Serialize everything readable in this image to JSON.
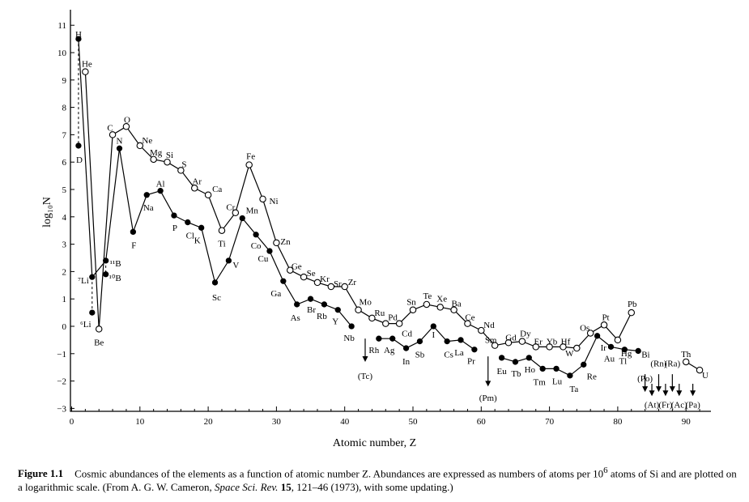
{
  "chart_data": {
    "type": "line",
    "title": "",
    "xlabel": "Atomic number, Z",
    "ylabel": "log₁₀N",
    "xlim": [
      0,
      94
    ],
    "ylim": [
      -3,
      11
    ],
    "xticks": [
      0,
      10,
      20,
      30,
      40,
      50,
      60,
      70,
      80,
      90
    ],
    "yticks": [
      -3,
      -2,
      -1,
      0,
      1,
      2,
      3,
      4,
      5,
      6,
      7,
      8,
      9,
      10,
      11
    ],
    "grid": false,
    "series": [
      {
        "marker": "open",
        "points": [
          {
            "z": 2,
            "y": 9.3,
            "label": "He"
          },
          {
            "z": 4,
            "y": -0.1,
            "label": "Be"
          },
          {
            "z": 6,
            "y": 7.0,
            "label": "C"
          },
          {
            "z": 8,
            "y": 7.3,
            "label": "O"
          },
          {
            "z": 10,
            "y": 6.6,
            "label": "Ne"
          },
          {
            "z": 12,
            "y": 6.1,
            "label": "Mg"
          },
          {
            "z": 14,
            "y": 6.0,
            "label": "Si"
          },
          {
            "z": 16,
            "y": 5.7,
            "label": "S"
          },
          {
            "z": 18,
            "y": 5.05,
            "label": "Ar"
          },
          {
            "z": 20,
            "y": 4.8,
            "label": "Ca"
          },
          {
            "z": 22,
            "y": 3.5,
            "label": "Ti"
          },
          {
            "z": 24,
            "y": 4.15,
            "label": "Cr"
          },
          {
            "z": 26,
            "y": 5.9,
            "label": "Fe"
          },
          {
            "z": 28,
            "y": 4.65,
            "label": "Ni"
          },
          {
            "z": 30,
            "y": 3.05,
            "label": "Zn"
          },
          {
            "z": 32,
            "y": 2.05,
            "label": "Ge"
          },
          {
            "z": 34,
            "y": 1.8,
            "label": "Se"
          },
          {
            "z": 36,
            "y": 1.6,
            "label": "Kr"
          },
          {
            "z": 38,
            "y": 1.45,
            "label": "Sr"
          },
          {
            "z": 40,
            "y": 1.45,
            "label": "Zr"
          },
          {
            "z": 42,
            "y": 0.6,
            "label": "Mo"
          },
          {
            "z": 44,
            "y": 0.3,
            "label": "Ru"
          },
          {
            "z": 46,
            "y": 0.1,
            "label": "Pd"
          },
          {
            "z": 48,
            "y": 0.1,
            "label": "Cd"
          },
          {
            "z": 50,
            "y": 0.6,
            "label": "Sn"
          },
          {
            "z": 52,
            "y": 0.8,
            "label": "Te"
          },
          {
            "z": 54,
            "y": 0.7,
            "label": "Xe"
          },
          {
            "z": 56,
            "y": 0.6,
            "label": "Ba"
          },
          {
            "z": 58,
            "y": 0.1,
            "label": "Ce"
          },
          {
            "z": 60,
            "y": -0.15,
            "label": "Nd"
          },
          {
            "z": 62,
            "y": -0.7,
            "label": "Sm"
          },
          {
            "z": 64,
            "y": -0.6,
            "label": "Gd"
          },
          {
            "z": 66,
            "y": -0.55,
            "label": "Dy"
          },
          {
            "z": 68,
            "y": -0.75,
            "label": "Er"
          },
          {
            "z": 70,
            "y": -0.75,
            "label": "Yb"
          },
          {
            "z": 72,
            "y": -0.75,
            "label": "Hf"
          },
          {
            "z": 74,
            "y": -0.8,
            "label": "W"
          },
          {
            "z": 76,
            "y": -0.25,
            "label": "Os"
          },
          {
            "z": 78,
            "y": 0.05,
            "label": "Pt"
          },
          {
            "z": 80,
            "y": -0.5,
            "label": "Hg"
          },
          {
            "z": 82,
            "y": 0.5,
            "label": "Pb"
          },
          {
            "z": 90,
            "y": -1.3,
            "label": "Th"
          },
          {
            "z": 92,
            "y": -1.6,
            "label": "U"
          }
        ]
      },
      {
        "marker": "filled",
        "points": [
          {
            "z": 1,
            "y": 10.5,
            "label": "H"
          },
          {
            "z": 3,
            "y": 1.8,
            "label": "⁷Li"
          },
          {
            "z": 5,
            "y": 2.4,
            "label": "¹¹B"
          },
          {
            "z": 7,
            "y": 6.5,
            "label": "N"
          },
          {
            "z": 9,
            "y": 3.45,
            "label": "F"
          },
          {
            "z": 11,
            "y": 4.8,
            "label": "Na"
          },
          {
            "z": 13,
            "y": 4.95,
            "label": "Al"
          },
          {
            "z": 15,
            "y": 4.05,
            "label": "P"
          },
          {
            "z": 17,
            "y": 3.8,
            "label": "Cl"
          },
          {
            "z": 19,
            "y": 3.6,
            "label": "K"
          },
          {
            "z": 21,
            "y": 1.6,
            "label": "Sc"
          },
          {
            "z": 23,
            "y": 2.4,
            "label": "V"
          },
          {
            "z": 25,
            "y": 3.95,
            "label": "Mn"
          },
          {
            "z": 27,
            "y": 3.35,
            "label": "Co"
          },
          {
            "z": 29,
            "y": 2.75,
            "label": "Cu"
          },
          {
            "z": 31,
            "y": 1.65,
            "label": "Ga"
          },
          {
            "z": 33,
            "y": 0.8,
            "label": "As"
          },
          {
            "z": 35,
            "y": 1.0,
            "label": "Br"
          },
          {
            "z": 37,
            "y": 0.8,
            "label": "Rb"
          },
          {
            "z": 39,
            "y": 0.6,
            "label": "Y"
          },
          {
            "z": 41,
            "y": 0.0,
            "label": "Nb"
          },
          {
            "z": 45,
            "y": -0.45,
            "label": "Rh"
          },
          {
            "z": 47,
            "y": -0.45,
            "label": "Ag"
          },
          {
            "z": 49,
            "y": -0.8,
            "label": "In"
          },
          {
            "z": 51,
            "y": -0.55,
            "label": "Sb"
          },
          {
            "z": 53,
            "y": 0.0,
            "label": "I"
          },
          {
            "z": 55,
            "y": -0.55,
            "label": "Cs"
          },
          {
            "z": 57,
            "y": -0.5,
            "label": "La"
          },
          {
            "z": 59,
            "y": -0.85,
            "label": "Pr"
          },
          {
            "z": 63,
            "y": -1.15,
            "label": "Eu"
          },
          {
            "z": 65,
            "y": -1.3,
            "label": "Tb"
          },
          {
            "z": 67,
            "y": -1.15,
            "label": "Ho"
          },
          {
            "z": 69,
            "y": -1.55,
            "label": "Tm"
          },
          {
            "z": 71,
            "y": -1.55,
            "label": "Lu"
          },
          {
            "z": 73,
            "y": -1.8,
            "label": "Ta"
          },
          {
            "z": 75,
            "y": -1.4,
            "label": "Re"
          },
          {
            "z": 77,
            "y": -0.35,
            "label": "Ir"
          },
          {
            "z": 79,
            "y": -0.75,
            "label": "Au"
          },
          {
            "z": 81,
            "y": -0.85,
            "label": "Tl"
          },
          {
            "z": 83,
            "y": -0.9,
            "label": "Bi"
          }
        ]
      }
    ],
    "isotope_points": [
      {
        "z": 1,
        "y": 6.6,
        "label": "D",
        "marker": "filled"
      },
      {
        "z": 3,
        "y": 0.5,
        "label": "⁶Li",
        "marker": "filled"
      },
      {
        "z": 5,
        "y": 1.9,
        "label": "¹⁰B",
        "marker": "filled"
      }
    ],
    "unstable_elements": [
      {
        "z": 43,
        "label": "(Tc)"
      },
      {
        "z": 61,
        "label": "(Pm)"
      },
      {
        "z": 84,
        "label": "(Po)"
      },
      {
        "z": 85,
        "label": "(At)"
      },
      {
        "z": 86,
        "label": "(Rn)"
      },
      {
        "z": 87,
        "label": "(Fr)"
      },
      {
        "z": 88,
        "label": "(Ra)"
      },
      {
        "z": 89,
        "label": "(Ac)"
      },
      {
        "z": 91,
        "label": "(Pa)"
      }
    ]
  },
  "caption": {
    "label": "Figure 1.1",
    "text_1": "Cosmic abundances of the elements as a function of atomic number Z. Abundances are expressed as numbers of atoms per 10",
    "sup": "6",
    "text_2": " atoms of Si and are plotted on a logarithmic scale. (From A. G. W. Cameron, ",
    "journal": "Space Sci. Rev.",
    "volume": " 15",
    "text_3": ", 121–46 (1973), with some updating.)"
  }
}
